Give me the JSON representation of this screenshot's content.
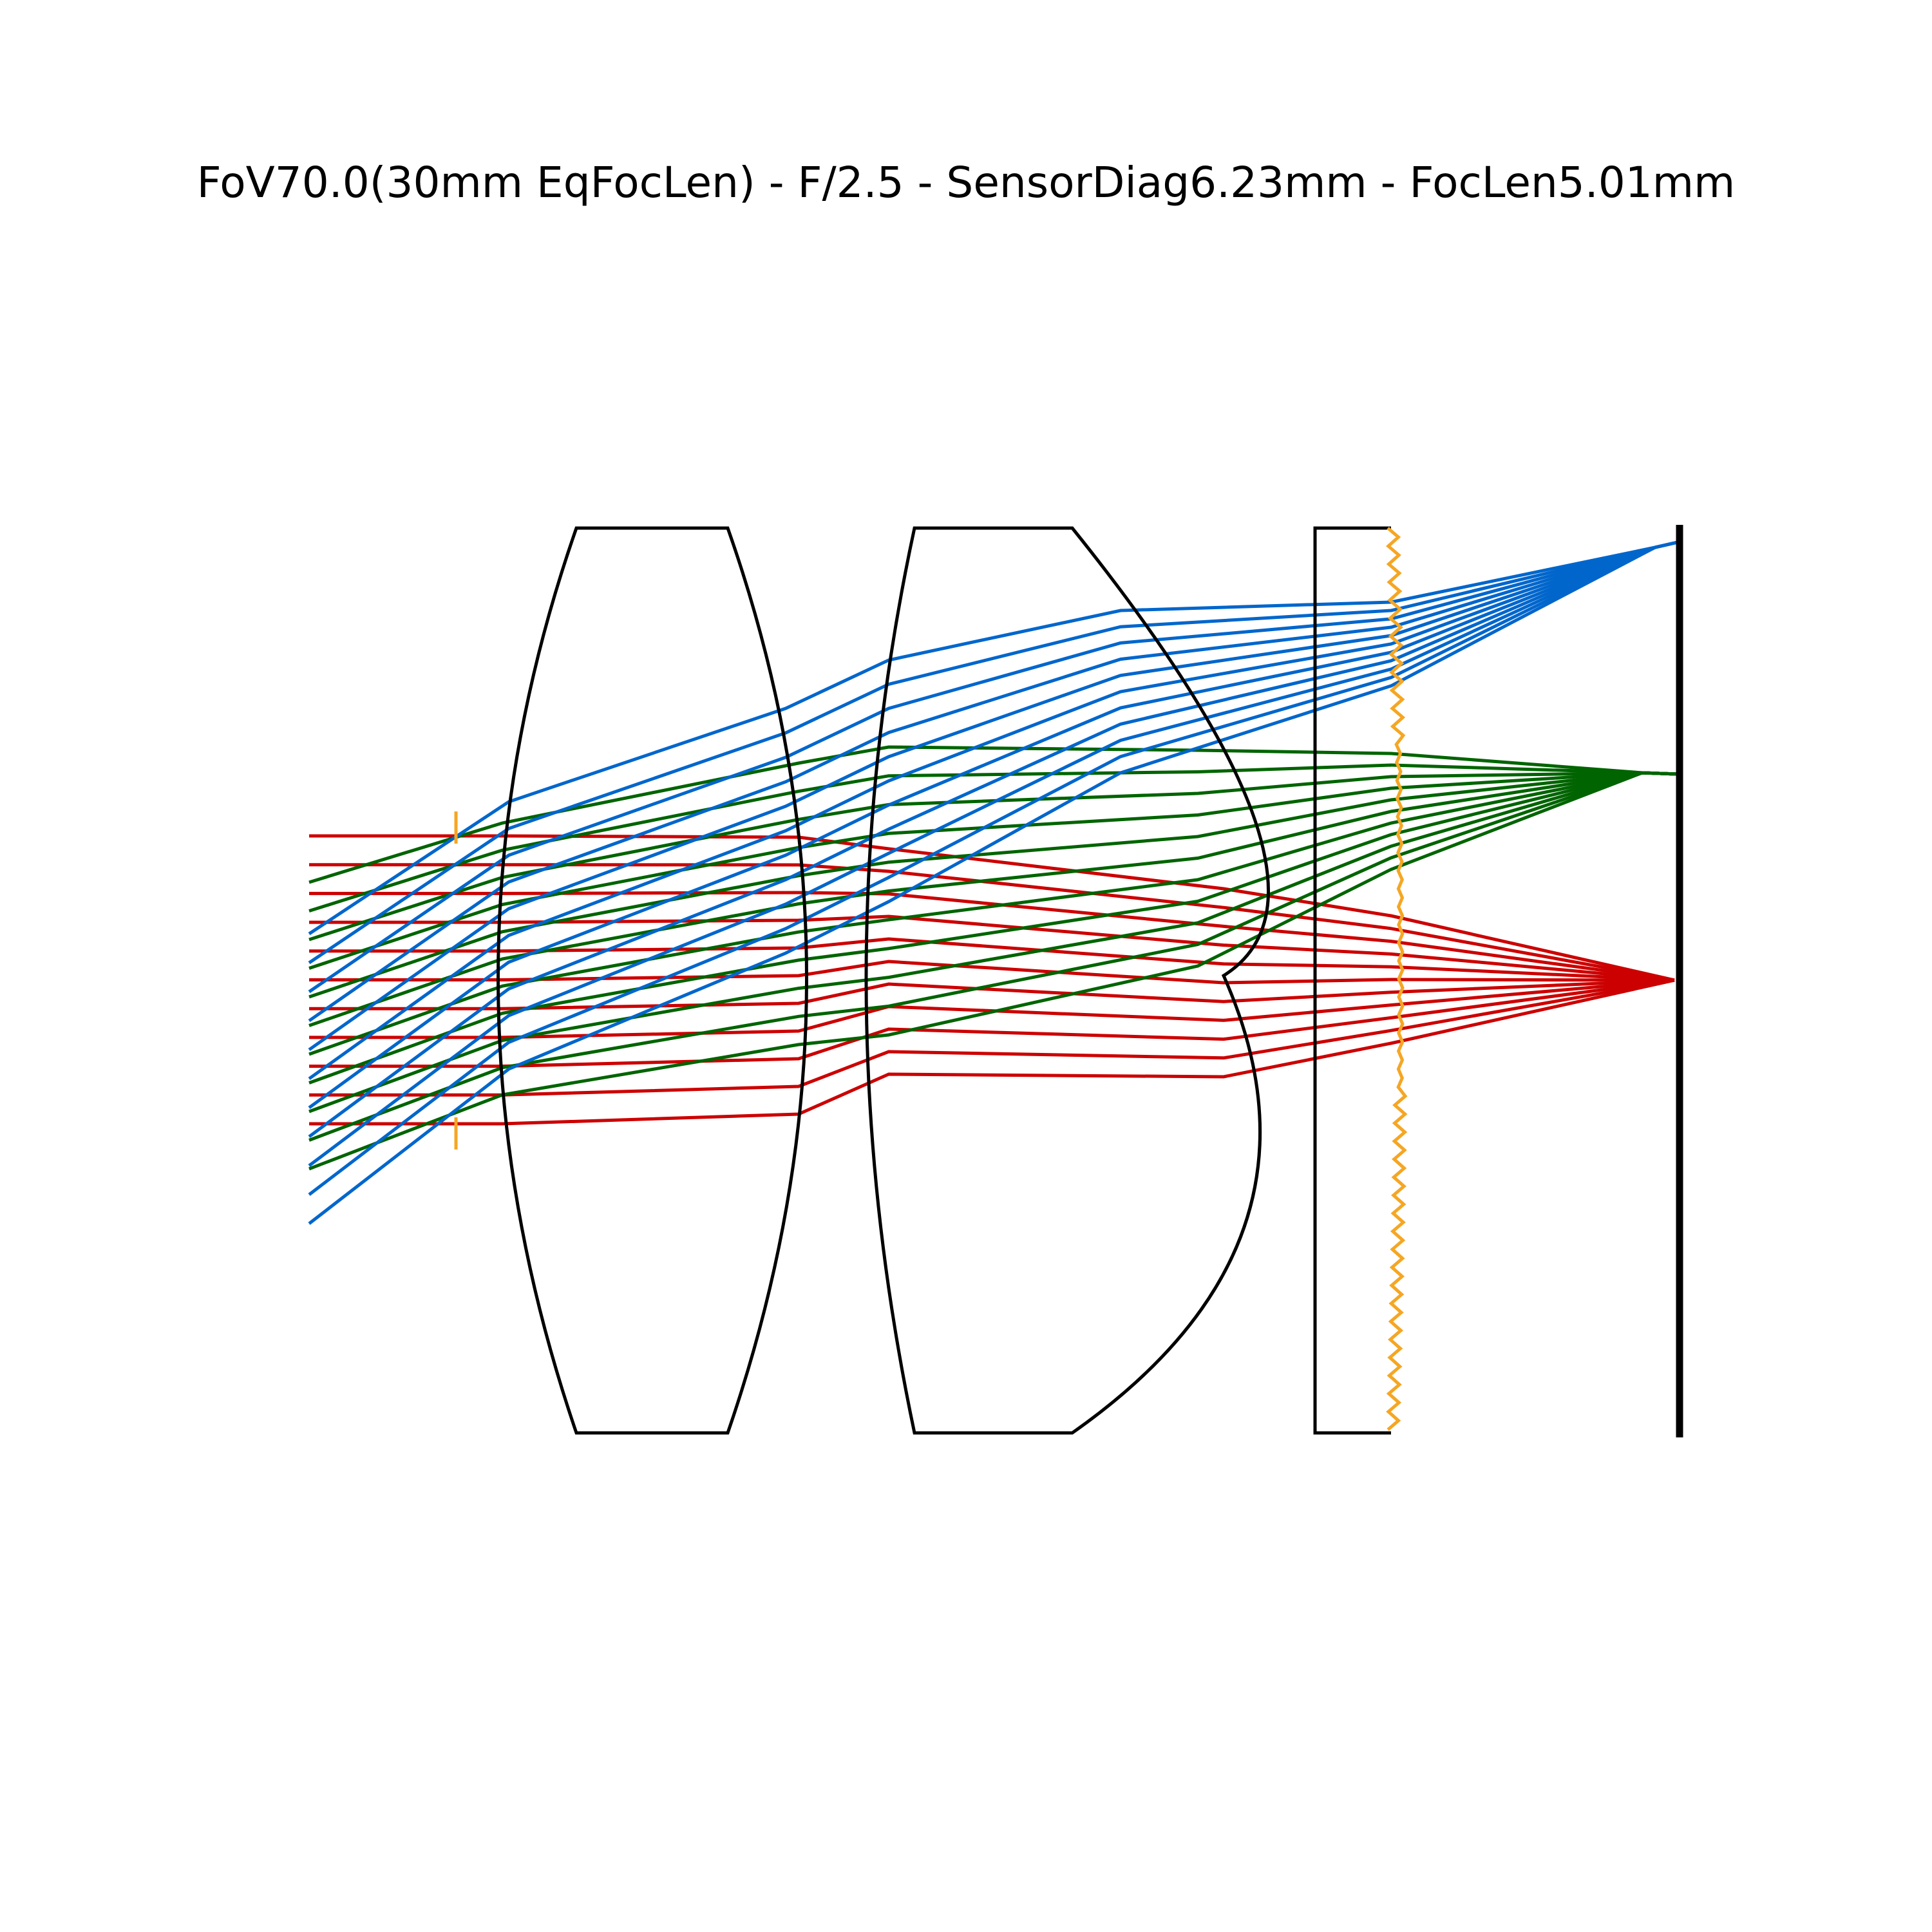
{
  "title": "FoV70.0(30mm EqFocLen) - F/2.5 - SensorDiag6.23mm - FocLen5.01mm",
  "colors": {
    "on_axis_rays": "#cc0000",
    "mid_field_rays": "#006400",
    "full_field_rays": "#0066cc",
    "stop_and_ir_filter": "#f5a623",
    "lens_outline": "#000000",
    "sensor": "#000000"
  },
  "elements": [
    "aperture-stop",
    "lens-element-1",
    "lens-element-2",
    "ir-cut-filter",
    "sensor-plane"
  ],
  "ray_fields": [
    "on-axis",
    "mid-field",
    "full-field"
  ],
  "rays_per_field": 11
}
